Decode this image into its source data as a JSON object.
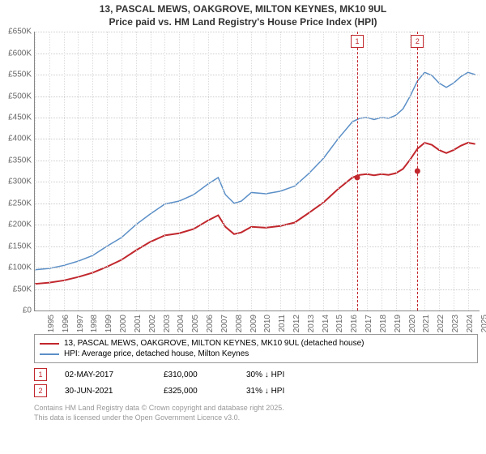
{
  "title_line1": "13, PASCAL MEWS, OAKGROVE, MILTON KEYNES, MK10 9UL",
  "title_line2": "Price paid vs. HM Land Registry's House Price Index (HPI)",
  "chart": {
    "type": "line",
    "x_min": 1995,
    "x_max": 2025.8,
    "y_min": 0,
    "y_max": 650000,
    "y_ticks": [
      0,
      50000,
      100000,
      150000,
      200000,
      250000,
      300000,
      350000,
      400000,
      450000,
      500000,
      550000,
      600000,
      650000
    ],
    "y_tick_labels": [
      "£0",
      "£50K",
      "£100K",
      "£150K",
      "£200K",
      "£250K",
      "£300K",
      "£350K",
      "£400K",
      "£450K",
      "£500K",
      "£550K",
      "£600K",
      "£650K"
    ],
    "x_ticks": [
      1995,
      1996,
      1997,
      1998,
      1999,
      2000,
      2001,
      2002,
      2003,
      2004,
      2005,
      2006,
      2007,
      2008,
      2009,
      2010,
      2011,
      2012,
      2013,
      2014,
      2015,
      2016,
      2017,
      2018,
      2019,
      2020,
      2021,
      2022,
      2023,
      2024,
      2025
    ],
    "grid_color": "#e0e0e0",
    "background": "#ffffff",
    "series": [
      {
        "name": "HPI: Average price, detached house, Milton Keynes",
        "color": "#5b8fc7",
        "width": 1.5,
        "data": [
          [
            1995,
            95000
          ],
          [
            1996,
            98000
          ],
          [
            1997,
            105000
          ],
          [
            1998,
            115000
          ],
          [
            1999,
            128000
          ],
          [
            2000,
            150000
          ],
          [
            2001,
            170000
          ],
          [
            2002,
            200000
          ],
          [
            2003,
            225000
          ],
          [
            2004,
            248000
          ],
          [
            2005,
            255000
          ],
          [
            2006,
            270000
          ],
          [
            2007,
            295000
          ],
          [
            2007.7,
            310000
          ],
          [
            2008.2,
            270000
          ],
          [
            2008.8,
            250000
          ],
          [
            2009.3,
            255000
          ],
          [
            2010,
            275000
          ],
          [
            2011,
            272000
          ],
          [
            2012,
            278000
          ],
          [
            2013,
            290000
          ],
          [
            2014,
            320000
          ],
          [
            2015,
            355000
          ],
          [
            2016,
            400000
          ],
          [
            2017,
            440000
          ],
          [
            2017.5,
            448000
          ],
          [
            2018,
            450000
          ],
          [
            2018.5,
            445000
          ],
          [
            2019,
            450000
          ],
          [
            2019.5,
            448000
          ],
          [
            2020,
            455000
          ],
          [
            2020.5,
            470000
          ],
          [
            2021,
            500000
          ],
          [
            2021.5,
            535000
          ],
          [
            2022,
            555000
          ],
          [
            2022.5,
            548000
          ],
          [
            2023,
            530000
          ],
          [
            2023.5,
            520000
          ],
          [
            2024,
            530000
          ],
          [
            2024.5,
            545000
          ],
          [
            2025,
            555000
          ],
          [
            2025.5,
            550000
          ]
        ]
      },
      {
        "name": "13, PASCAL MEWS, OAKGROVE, MILTON KEYNES, MK10 9UL (detached house)",
        "color": "#c1272d",
        "width": 2,
        "data": [
          [
            1995,
            62000
          ],
          [
            1996,
            65000
          ],
          [
            1997,
            70000
          ],
          [
            1998,
            78000
          ],
          [
            1999,
            88000
          ],
          [
            2000,
            102000
          ],
          [
            2001,
            118000
          ],
          [
            2002,
            140000
          ],
          [
            2003,
            160000
          ],
          [
            2004,
            175000
          ],
          [
            2005,
            180000
          ],
          [
            2006,
            190000
          ],
          [
            2007,
            210000
          ],
          [
            2007.7,
            222000
          ],
          [
            2008.2,
            195000
          ],
          [
            2008.8,
            178000
          ],
          [
            2009.3,
            182000
          ],
          [
            2010,
            195000
          ],
          [
            2011,
            193000
          ],
          [
            2012,
            197000
          ],
          [
            2013,
            205000
          ],
          [
            2014,
            228000
          ],
          [
            2015,
            252000
          ],
          [
            2016,
            283000
          ],
          [
            2017,
            310000
          ],
          [
            2017.5,
            316000
          ],
          [
            2018,
            318000
          ],
          [
            2018.5,
            315000
          ],
          [
            2019,
            318000
          ],
          [
            2019.5,
            316000
          ],
          [
            2020,
            320000
          ],
          [
            2020.5,
            330000
          ],
          [
            2021,
            352000
          ],
          [
            2021.5,
            377000
          ],
          [
            2022,
            391000
          ],
          [
            2022.5,
            386000
          ],
          [
            2023,
            374000
          ],
          [
            2023.5,
            367000
          ],
          [
            2024,
            374000
          ],
          [
            2024.5,
            384000
          ],
          [
            2025,
            391000
          ],
          [
            2025.5,
            388000
          ]
        ]
      }
    ],
    "markers": [
      {
        "x": 2017.33,
        "y": 310000,
        "color": "#c1272d"
      },
      {
        "x": 2021.5,
        "y": 325000,
        "color": "#c1272d"
      }
    ],
    "vmarks": [
      {
        "label": "1",
        "x": 2017.33,
        "color": "#c1272d"
      },
      {
        "label": "2",
        "x": 2021.5,
        "color": "#c1272d"
      }
    ]
  },
  "legend": {
    "items": [
      {
        "color": "#c1272d",
        "label": "13, PASCAL MEWS, OAKGROVE, MILTON KEYNES, MK10 9UL (detached house)"
      },
      {
        "color": "#5b8fc7",
        "label": "HPI: Average price, detached house, Milton Keynes"
      }
    ]
  },
  "annotations": [
    {
      "num": "1",
      "color": "#c1272d",
      "date": "02-MAY-2017",
      "price": "£310,000",
      "delta": "30% ↓ HPI"
    },
    {
      "num": "2",
      "color": "#c1272d",
      "date": "30-JUN-2021",
      "price": "£325,000",
      "delta": "31% ↓ HPI"
    }
  ],
  "footer_line1": "Contains HM Land Registry data © Crown copyright and database right 2025.",
  "footer_line2": "This data is licensed under the Open Government Licence v3.0."
}
